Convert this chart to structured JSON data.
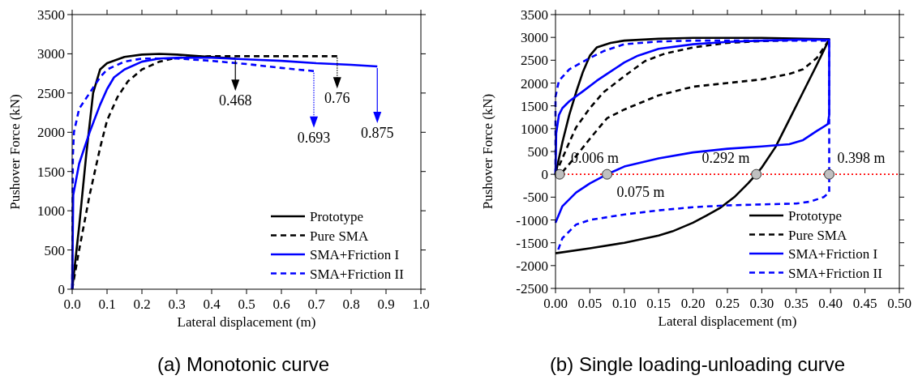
{
  "chart_data": [
    {
      "type": "line",
      "title": "(a) Monotonic curve",
      "xlabel": "Lateral displacement (m)",
      "ylabel": "Pushover Force (kN)",
      "xlim": [
        0,
        1.0
      ],
      "xticks": [
        {
          "value": 0,
          "label": "0.0"
        },
        0.1,
        0.2,
        0.3,
        0.4,
        0.5,
        0.6,
        0.7,
        0.8,
        0.9,
        {
          "value": 1,
          "label": "1.0"
        }
      ],
      "ylim": [
        0,
        3500
      ],
      "yticks": [
        0,
        500,
        1000,
        1500,
        2000,
        2500,
        3000,
        3500
      ],
      "legend": "bottom right",
      "grid": false,
      "series": [
        {
          "name": "Prototype",
          "color": "#000000",
          "line_style": "solid",
          "x": [
            0,
            0.02,
            0.04,
            0.06,
            0.08,
            0.1,
            0.15,
            0.2,
            0.25,
            0.3,
            0.4,
            0.468
          ],
          "values": [
            0,
            800,
            1700,
            2500,
            2800,
            2880,
            2960,
            2990,
            3000,
            2990,
            2960,
            2940
          ]
        },
        {
          "name": "Pure SMA",
          "color": "#000000",
          "line_style": "dashed",
          "x": [
            0,
            0.02,
            0.05,
            0.08,
            0.1,
            0.13,
            0.16,
            0.2,
            0.25,
            0.3,
            0.4,
            0.5,
            0.76
          ],
          "values": [
            0,
            500,
            1200,
            1800,
            2150,
            2450,
            2650,
            2800,
            2900,
            2950,
            2970,
            2970,
            2970
          ]
        },
        {
          "name": "SMA+Friction I",
          "color": "#0000ff",
          "line_style": "solid",
          "x": [
            0,
            0.003,
            0.02,
            0.05,
            0.08,
            0.1,
            0.12,
            0.15,
            0.2,
            0.25,
            0.3,
            0.4,
            0.5,
            0.6,
            0.7,
            0.8,
            0.875
          ],
          "values": [
            0,
            1200,
            1600,
            2000,
            2350,
            2550,
            2700,
            2800,
            2900,
            2940,
            2950,
            2950,
            2930,
            2910,
            2880,
            2860,
            2840
          ]
        },
        {
          "name": "SMA+Friction II",
          "color": "#0000ff",
          "line_style": "dashed",
          "x": [
            0,
            0.002,
            0.005,
            0.02,
            0.05,
            0.08,
            0.1,
            0.15,
            0.2,
            0.3,
            0.4,
            0.5,
            0.6,
            0.693
          ],
          "values": [
            0,
            1700,
            2000,
            2300,
            2500,
            2700,
            2800,
            2900,
            2940,
            2940,
            2910,
            2870,
            2820,
            2780
          ]
        }
      ],
      "annotations": [
        {
          "text": "0.468",
          "x": 0.468,
          "y": 2940
        },
        {
          "text": "0.693",
          "x": 0.693,
          "y": 2780
        },
        {
          "text": "0.76",
          "x": 0.76,
          "y": 2970
        },
        {
          "text": "0.875",
          "x": 0.875,
          "y": 2840
        }
      ]
    },
    {
      "type": "line",
      "title": "(b) Single loading-unloading curve",
      "xlabel": "Lateral displacement (m)",
      "ylabel": "Pushover Force (kN)",
      "xlim": [
        0,
        0.5
      ],
      "xticks": [
        {
          "value": 0,
          "label": "0.00"
        },
        {
          "value": 0.05,
          "label": "0.05"
        },
        {
          "value": 0.1,
          "label": "0.10"
        },
        {
          "value": 0.15,
          "label": "0.15"
        },
        {
          "value": 0.2,
          "label": "0.20"
        },
        {
          "value": 0.25,
          "label": "0.25"
        },
        {
          "value": 0.3,
          "label": "0.30"
        },
        {
          "value": 0.35,
          "label": "0.35"
        },
        {
          "value": 0.4,
          "label": "0.40"
        },
        {
          "value": 0.45,
          "label": "0.45"
        },
        {
          "value": 0.5,
          "label": "0.50"
        }
      ],
      "ylim": [
        -2500,
        3500
      ],
      "yticks": [
        -2500,
        -2000,
        -1500,
        -1000,
        -500,
        0,
        500,
        1000,
        1500,
        2000,
        2500,
        3000,
        3500
      ],
      "legend": "bottom right",
      "grid": false,
      "ref_lines": [
        {
          "axis": "y",
          "value": 0,
          "color": "#ff0000",
          "line_style": "dotted"
        }
      ],
      "series": [
        {
          "name": "Prototype",
          "color": "#000000",
          "line_style": "solid",
          "x": [
            0,
            0.01,
            0.02,
            0.03,
            0.04,
            0.05,
            0.06,
            0.08,
            0.1,
            0.15,
            0.2,
            0.3,
            0.398,
            0.38,
            0.36,
            0.34,
            0.32,
            0.3,
            0.292,
            0.28,
            0.26,
            0.24,
            0.22,
            0.2,
            0.17,
            0.15,
            0.1,
            0.05,
            0
          ],
          "values": [
            0,
            700,
            1300,
            1800,
            2250,
            2600,
            2780,
            2880,
            2930,
            2970,
            2990,
            2990,
            2960,
            2400,
            1800,
            1200,
            600,
            150,
            0,
            -200,
            -500,
            -730,
            -900,
            -1060,
            -1250,
            -1340,
            -1500,
            -1620,
            -1730
          ]
        },
        {
          "name": "Pure SMA",
          "color": "#000000",
          "line_style": "dashed",
          "x": [
            0,
            0.01,
            0.02,
            0.03,
            0.05,
            0.07,
            0.1,
            0.13,
            0.16,
            0.2,
            0.25,
            0.3,
            0.35,
            0.398,
            0.38,
            0.36,
            0.34,
            0.3,
            0.25,
            0.2,
            0.15,
            0.1,
            0.075,
            0.05,
            0.03,
            0.01
          ],
          "values": [
            0,
            350,
            700,
            1030,
            1450,
            1800,
            2150,
            2480,
            2650,
            2780,
            2880,
            2920,
            2940,
            2950,
            2550,
            2300,
            2200,
            2080,
            2000,
            1920,
            1730,
            1420,
            1230,
            780,
            400,
            50
          ]
        },
        {
          "name": "SMA+Friction I",
          "color": "#0000ff",
          "line_style": "solid",
          "x": [
            0,
            0.001,
            0.005,
            0.01,
            0.02,
            0.04,
            0.06,
            0.08,
            0.1,
            0.12,
            0.15,
            0.2,
            0.25,
            0.3,
            0.35,
            0.398,
            0.398,
            0.396,
            0.38,
            0.36,
            0.34,
            0.3,
            0.25,
            0.2,
            0.15,
            0.1,
            0.075,
            0.05,
            0.03,
            0.01,
            0
          ],
          "values": [
            0,
            900,
            1300,
            1450,
            1600,
            1820,
            2050,
            2250,
            2450,
            2600,
            2750,
            2850,
            2900,
            2930,
            2950,
            2950,
            1300,
            1100,
            950,
            750,
            660,
            610,
            560,
            480,
            350,
            170,
            0,
            -200,
            -400,
            -700,
            -1060
          ]
        },
        {
          "name": "SMA+Friction II",
          "color": "#0000ff",
          "line_style": "dashed",
          "x": [
            0,
            0,
            0.005,
            0.02,
            0.05,
            0.07,
            0.1,
            0.15,
            0.2,
            0.3,
            0.398,
            0.398,
            0.39,
            0.37,
            0.35,
            0.3,
            0.25,
            0.2,
            0.15,
            0.1,
            0.05,
            0.03,
            0.01,
            0.004
          ],
          "values": [
            0,
            1700,
            2050,
            2300,
            2550,
            2700,
            2850,
            2910,
            2930,
            2930,
            2930,
            -400,
            -500,
            -600,
            -640,
            -660,
            -680,
            -720,
            -790,
            -880,
            -1000,
            -1100,
            -1400,
            -1650
          ]
        },
        {
          "type": "scatter",
          "color": "#c0c0c0",
          "marker": "circle",
          "x": [
            0.006,
            0.075,
            0.292,
            0.398
          ],
          "values": [
            0,
            0,
            0,
            0
          ]
        }
      ],
      "annotations": [
        {
          "text": "0.006 m",
          "x": 0.006,
          "y": 0
        },
        {
          "text": "0.075 m",
          "x": 0.075,
          "y": 0
        },
        {
          "text": "0.292 m",
          "x": 0.292,
          "y": 0
        },
        {
          "text": "0.398 m",
          "x": 0.398,
          "y": 0
        }
      ]
    }
  ]
}
